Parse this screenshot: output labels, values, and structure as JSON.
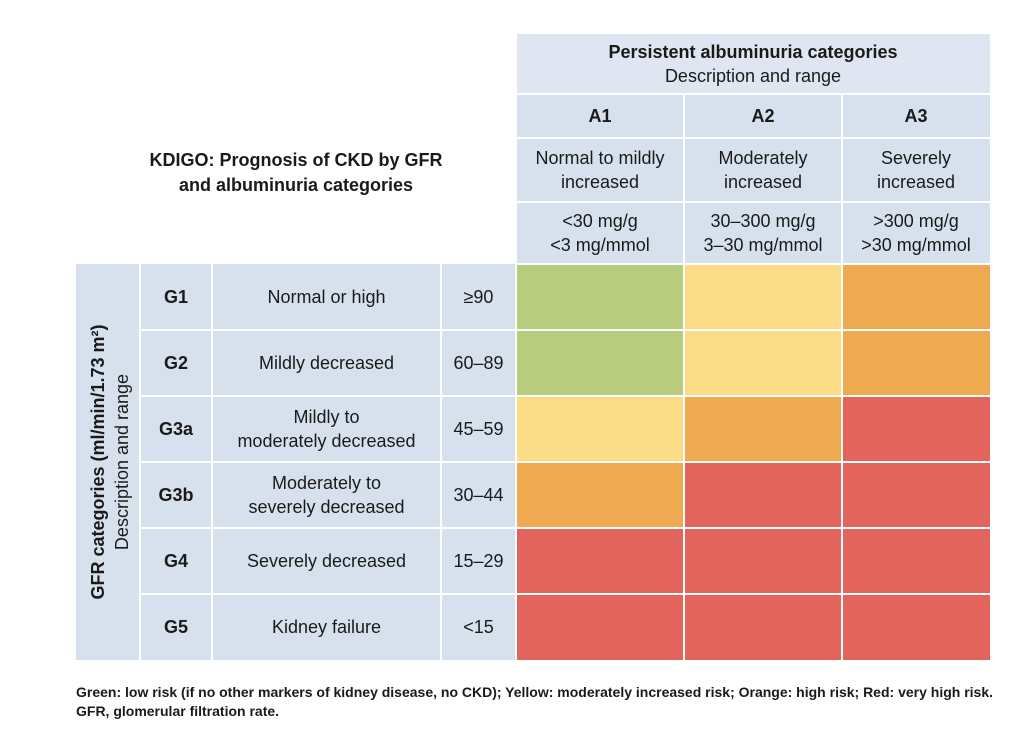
{
  "title": {
    "line1": "KDIGO: Prognosis of CKD by GFR",
    "line2": "and albuminuria categories"
  },
  "albuminuria_header": {
    "title": "Persistent albuminuria categories",
    "subtitle": "Description and range"
  },
  "albuminuria_columns": [
    {
      "code": "A1",
      "description": "Normal to mildly\nincreased",
      "range": "<30 mg/g\n<3 mg/mmol"
    },
    {
      "code": "A2",
      "description": "Moderately\nincreased",
      "range": "30–300 mg/g\n3–30 mg/mmol"
    },
    {
      "code": "A3",
      "description": "Severely\nincreased",
      "range": ">300 mg/g\n>30 mg/mmol"
    }
  ],
  "gfr_header": {
    "title": "GFR categories (ml/min/1.73 m²)",
    "subtitle": "Description and range"
  },
  "gfr_rows": [
    {
      "code": "G1",
      "description": "Normal or high",
      "range": "≥90",
      "risk": [
        "green",
        "yellow",
        "orange"
      ]
    },
    {
      "code": "G2",
      "description": "Mildly decreased",
      "range": "60–89",
      "risk": [
        "green",
        "yellow",
        "orange"
      ]
    },
    {
      "code": "G3a",
      "description": "Mildly to\nmoderately decreased",
      "range": "45–59",
      "risk": [
        "yellow",
        "orange",
        "red"
      ]
    },
    {
      "code": "G3b",
      "description": "Moderately to\nseverely decreased",
      "range": "30–44",
      "risk": [
        "orange",
        "red",
        "red"
      ]
    },
    {
      "code": "G4",
      "description": "Severely decreased",
      "range": "15–29",
      "risk": [
        "red",
        "red",
        "red"
      ]
    },
    {
      "code": "G5",
      "description": "Kidney failure",
      "range": "<15",
      "risk": [
        "red",
        "red",
        "red"
      ]
    }
  ],
  "risk_colors": {
    "green": "#b8cc7e",
    "yellow": "#fbdc86",
    "orange": "#efa950",
    "red": "#e2645c"
  },
  "caption": "Green: low risk (if no other markers of kidney disease, no CKD); Yellow: moderately increased risk; Orange: high risk; Red: very high risk. GFR, glomerular filtration rate."
}
